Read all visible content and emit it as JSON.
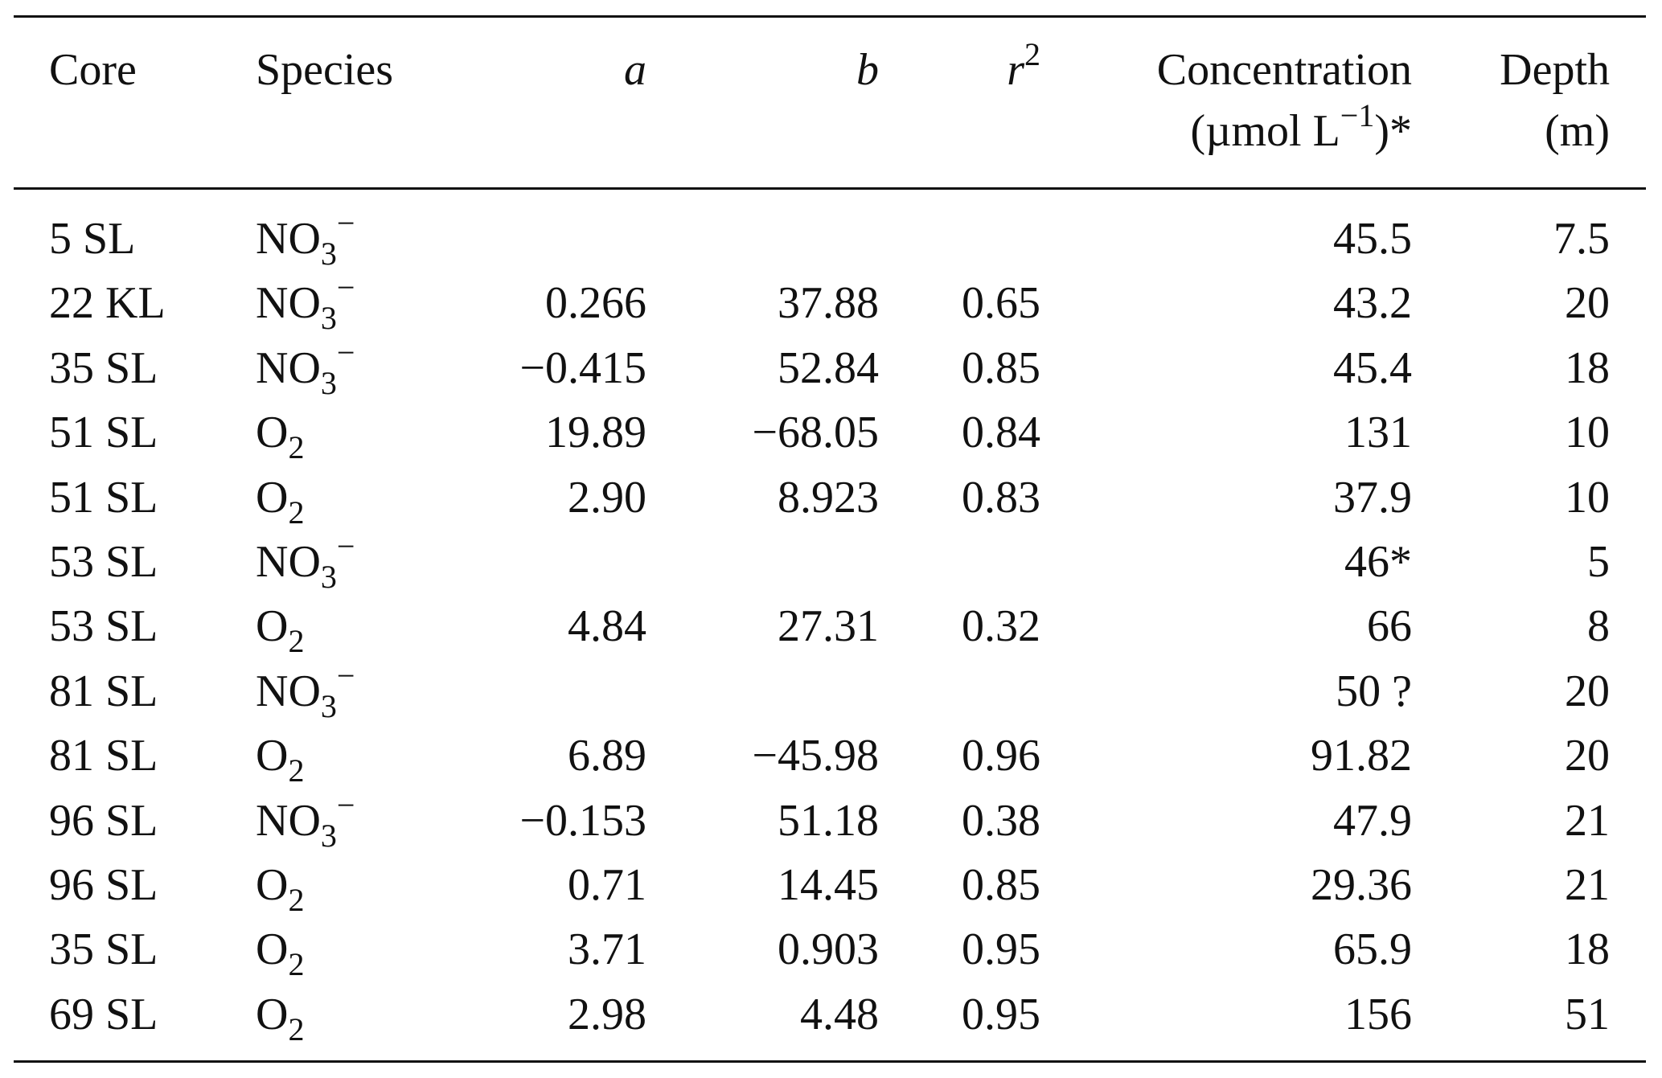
{
  "header": {
    "core": "Core",
    "species": "Species",
    "a": "a",
    "b": "b",
    "r2_base": "r",
    "r2_sup": "2",
    "conc_line1": "Concentration",
    "conc_line2_pre": "(µmol L",
    "conc_line2_sup": "−1",
    "conc_line2_post": ")*",
    "depth_line1": "Depth",
    "depth_line2": "(m)"
  },
  "rows": [
    {
      "core": "5 SL",
      "sp_base": "NO",
      "sp_sub": "3",
      "sp_sup": "−",
      "a": "",
      "b": "",
      "r2": "",
      "conc": "45.5",
      "depth": "7.5"
    },
    {
      "core": "22 KL",
      "sp_base": "NO",
      "sp_sub": "3",
      "sp_sup": "−",
      "a": "0.266",
      "b": "37.88",
      "r2": "0.65",
      "conc": "43.2",
      "depth": "20"
    },
    {
      "core": "35 SL",
      "sp_base": "NO",
      "sp_sub": "3",
      "sp_sup": "−",
      "a": "−0.415",
      "b": "52.84",
      "r2": "0.85",
      "conc": "45.4",
      "depth": "18"
    },
    {
      "core": "51 SL",
      "sp_base": "O",
      "sp_sub": "2",
      "sp_sup": "",
      "a": "19.89",
      "b": "−68.05",
      "r2": "0.84",
      "conc": "131",
      "depth": "10"
    },
    {
      "core": "51 SL",
      "sp_base": "O",
      "sp_sub": "2",
      "sp_sup": "",
      "a": "2.90",
      "b": "8.923",
      "r2": "0.83",
      "conc": "37.9",
      "depth": "10"
    },
    {
      "core": "53 SL",
      "sp_base": "NO",
      "sp_sub": "3",
      "sp_sup": "−",
      "a": "",
      "b": "",
      "r2": "",
      "conc": "46*",
      "depth": "5"
    },
    {
      "core": "53 SL",
      "sp_base": "O",
      "sp_sub": "2",
      "sp_sup": "",
      "a": "4.84",
      "b": "27.31",
      "r2": "0.32",
      "conc": "66",
      "depth": "8"
    },
    {
      "core": "81 SL",
      "sp_base": "NO",
      "sp_sub": "3",
      "sp_sup": "−",
      "a": "",
      "b": "",
      "r2": "",
      "conc": "50 ?",
      "depth": "20"
    },
    {
      "core": "81 SL",
      "sp_base": "O",
      "sp_sub": "2",
      "sp_sup": "",
      "a": "6.89",
      "b": "−45.98",
      "r2": "0.96",
      "conc": "91.82",
      "depth": "20"
    },
    {
      "core": "96 SL",
      "sp_base": "NO",
      "sp_sub": "3",
      "sp_sup": "−",
      "a": "−0.153",
      "b": "51.18",
      "r2": "0.38",
      "conc": "47.9",
      "depth": "21"
    },
    {
      "core": "96 SL",
      "sp_base": "O",
      "sp_sub": "2",
      "sp_sup": "",
      "a": "0.71",
      "b": "14.45",
      "r2": "0.85",
      "conc": "29.36",
      "depth": "21"
    },
    {
      "core": "35 SL",
      "sp_base": "O",
      "sp_sub": "2",
      "sp_sup": "",
      "a": "3.71",
      "b": "0.903",
      "r2": "0.95",
      "conc": "65.9",
      "depth": "18"
    },
    {
      "core": "69 SL",
      "sp_base": "O",
      "sp_sub": "2",
      "sp_sup": "",
      "a": "2.98",
      "b": "4.48",
      "r2": "0.95",
      "conc": "156",
      "depth": "51"
    }
  ]
}
